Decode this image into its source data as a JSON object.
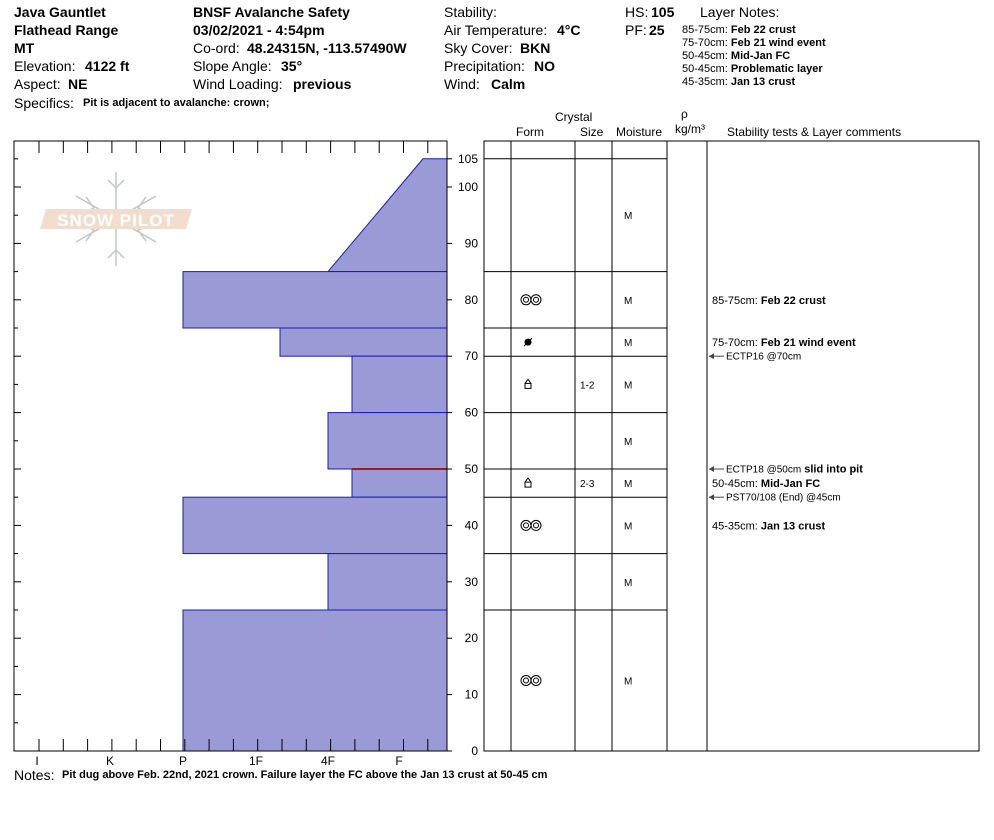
{
  "header": {
    "col1": {
      "site": "Java Gauntlet",
      "range": "Flathead Range",
      "state": "MT",
      "elevation_label": "Elevation:",
      "elevation_value": "4122 ft",
      "aspect_label": "Aspect:",
      "aspect_value": "NE"
    },
    "col2": {
      "observer": "BNSF Avalanche Safety",
      "datetime": "03/02/2021 - 4:54pm",
      "coord_label": "Co-ord:",
      "coord_value": "48.24315N, -113.57490W",
      "slope_label": "Slope Angle:",
      "slope_value": "35°",
      "wind_loading_label": "Wind Loading:",
      "wind_loading_value": "previous"
    },
    "col3": {
      "stability_label": "Stability:",
      "stability_value": "",
      "air_temp_label": "Air Temperature:",
      "air_temp_value": "4°C",
      "sky_label": "Sky Cover:",
      "sky_value": "BKN",
      "precip_label": "Precipitation:",
      "precip_value": "NO",
      "wind_label": "Wind:",
      "wind_value": "Calm"
    },
    "col4": {
      "hs_label": "HS:",
      "hs_value": "105",
      "pf_label": "PF:",
      "pf_value": "25"
    },
    "layer_notes_title": "Layer Notes:",
    "layer_notes": [
      {
        "range": "85-75cm:",
        "text": "Feb 22 crust"
      },
      {
        "range": "75-70cm:",
        "text": "Feb 21 wind event"
      },
      {
        "range": "50-45cm:",
        "text": "Mid-Jan FC"
      },
      {
        "range": "50-45cm:",
        "text": "Problematic layer"
      },
      {
        "range": "45-35cm:",
        "text": "Jan 13 crust"
      }
    ],
    "specifics_label": "Specifics:",
    "specifics_value": "Pit is adjacent to avalanche: crown;"
  },
  "logo_text": "SNOW PILOT",
  "table_headers": {
    "crystal": "Crystal",
    "form": "Form",
    "size": "Size",
    "moisture": "Moisture",
    "rho": "ρ",
    "density_unit": "kg/m³",
    "comments": "Stability tests & Layer comments"
  },
  "notes_label": "Notes:",
  "notes_value": "Pit dug above Feb. 22nd, 2021 crown. Failure layer the FC above the Jan 13 crust at 50-45 cm",
  "colors": {
    "layer_fill": "#9a9ad6",
    "layer_stroke": "#1c1cb4",
    "failure_line": "#9b1c1c"
  },
  "chart_data": {
    "type": "bar",
    "orientation": "horizontal",
    "description_axis": "hardness",
    "hardness_axis_ticks": [
      "I",
      "K",
      "P",
      "1F",
      "4F",
      "F"
    ],
    "height_axis_ticks": [
      0,
      10,
      20,
      30,
      40,
      50,
      60,
      70,
      80,
      90,
      100,
      105
    ],
    "height_range": [
      0,
      105
    ],
    "snow_height": 105,
    "layers": [
      {
        "top": 105,
        "bottom": 85,
        "hardness_top": "F+",
        "hardness_bottom": "4F"
      },
      {
        "top": 85,
        "bottom": 75,
        "hardness": "P"
      },
      {
        "top": 75,
        "bottom": 70,
        "hardness": "1F+"
      },
      {
        "top": 70,
        "bottom": 60,
        "hardness": "4F+"
      },
      {
        "top": 60,
        "bottom": 50,
        "hardness": "4F"
      },
      {
        "top": 50,
        "bottom": 45,
        "hardness": "4F+"
      },
      {
        "top": 45,
        "bottom": 35,
        "hardness": "P"
      },
      {
        "top": 35,
        "bottom": 25,
        "hardness": "4F"
      },
      {
        "top": 25,
        "bottom": 0,
        "hardness": "P"
      }
    ],
    "failure_layer_height": 50,
    "crystal_rows": [
      {
        "height": 95,
        "form": "",
        "size": "",
        "moisture": "M"
      },
      {
        "height": 80,
        "form": "melt-freeze-icon",
        "size": "",
        "moisture": "M"
      },
      {
        "height": 72.5,
        "form": "graupel-icon",
        "size": "",
        "moisture": "M"
      },
      {
        "height": 65,
        "form": "faceted-icon",
        "size": "1-2",
        "moisture": "M"
      },
      {
        "height": 55,
        "form": "",
        "size": "",
        "moisture": "M"
      },
      {
        "height": 47.5,
        "form": "faceted-icon",
        "size": "2-3",
        "moisture": "M"
      },
      {
        "height": 40,
        "form": "melt-freeze-icon",
        "size": "",
        "moisture": "M"
      },
      {
        "height": 30,
        "form": "",
        "size": "",
        "moisture": "M"
      },
      {
        "height": 12.5,
        "form": "melt-freeze-icon",
        "size": "",
        "moisture": "M"
      }
    ],
    "layer_comments": [
      {
        "height": 80,
        "range": "85-75cm:",
        "text": "Feb 22 crust"
      },
      {
        "height": 72.5,
        "range": "75-70cm:",
        "text": "Feb 21 wind event"
      },
      {
        "height": 47.5,
        "range": "50-45cm:",
        "text": "Mid-Jan FC"
      },
      {
        "height": 40,
        "range": "45-35cm:",
        "text": "Jan 13 crust"
      }
    ],
    "stability_tests": [
      {
        "height": 70,
        "test": "ECTP16 @70cm",
        "comment": ""
      },
      {
        "height": 50,
        "test": "ECTP18 @50cm",
        "comment": "slid into pit"
      },
      {
        "height": 45,
        "test": "PST70/108 (End) @45cm",
        "comment": ""
      }
    ]
  }
}
